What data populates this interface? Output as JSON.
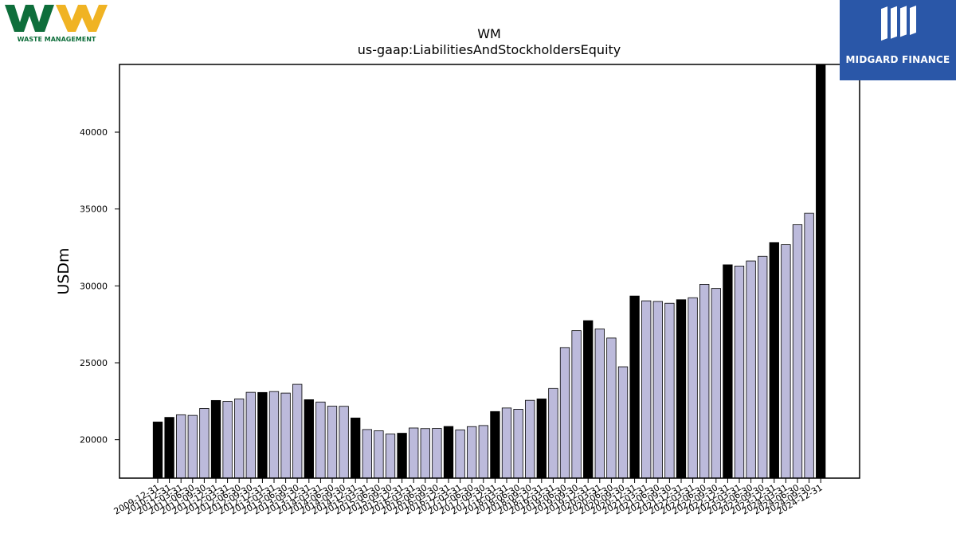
{
  "logos": {
    "left_caption": "WASTE MANAGEMENT",
    "right_caption": "MIDGARD FINANCE"
  },
  "colors": {
    "bar_light": "#bcbadb",
    "bar_dark": "#000000",
    "wm_green": "#0e6e3b",
    "wm_yellow": "#f0b323",
    "midgard_blue": "#2a57a8"
  },
  "chart_data": {
    "type": "bar",
    "title": "WM",
    "subtitle": "us-gaap:LiabilitiesAndStockholdersEquity",
    "xlabel": "",
    "ylabel": "USDm",
    "ylim": [
      17500,
      44400
    ],
    "yticks": [
      20000,
      25000,
      30000,
      35000,
      40000
    ],
    "grid": false,
    "categories": [
      "2009-12-31",
      "2010-12-31",
      "2011-03-31",
      "2011-06-30",
      "2011-09-30",
      "2011-12-31",
      "2012-03-31",
      "2012-06-30",
      "2012-09-30",
      "2012-12-31",
      "2013-03-31",
      "2013-06-30",
      "2013-09-30",
      "2013-12-31",
      "2014-03-31",
      "2014-06-30",
      "2014-09-30",
      "2014-12-31",
      "2015-03-31",
      "2015-06-30",
      "2015-09-30",
      "2015-12-31",
      "2016-03-31",
      "2016-06-30",
      "2016-09-30",
      "2016-12-31",
      "2017-03-31",
      "2017-06-30",
      "2017-09-30",
      "2017-12-31",
      "2018-03-31",
      "2018-06-30",
      "2018-09-30",
      "2018-12-31",
      "2019-03-31",
      "2019-06-30",
      "2019-09-30",
      "2019-12-31",
      "2020-03-31",
      "2020-06-30",
      "2020-09-30",
      "2020-12-31",
      "2021-03-31",
      "2021-06-30",
      "2021-09-30",
      "2021-12-31",
      "2022-03-31",
      "2022-06-30",
      "2022-09-30",
      "2022-12-31",
      "2023-03-31",
      "2023-06-30",
      "2023-09-30",
      "2023-12-31",
      "2024-03-31",
      "2024-06-30",
      "2024-09-30",
      "2024-12-31"
    ],
    "values": [
      21150,
      21450,
      21620,
      21580,
      22030,
      22550,
      22490,
      22650,
      23080,
      23070,
      23130,
      23030,
      23600,
      22600,
      22450,
      22180,
      22170,
      21410,
      20660,
      20580,
      20370,
      20420,
      20760,
      20720,
      20730,
      20860,
      20640,
      20850,
      20920,
      21830,
      22060,
      21980,
      22560,
      22650,
      23330,
      25990,
      27090,
      27740,
      27200,
      26610,
      24740,
      29340,
      29030,
      28990,
      28870,
      29100,
      29230,
      30100,
      29830,
      31370,
      31290,
      31620,
      31920,
      32820,
      32680,
      33980,
      34720,
      44400
    ],
    "highlight_indices": [
      0,
      1,
      5,
      9,
      13,
      17,
      21,
      25,
      29,
      33,
      37,
      41,
      45,
      49,
      53,
      57
    ]
  }
}
